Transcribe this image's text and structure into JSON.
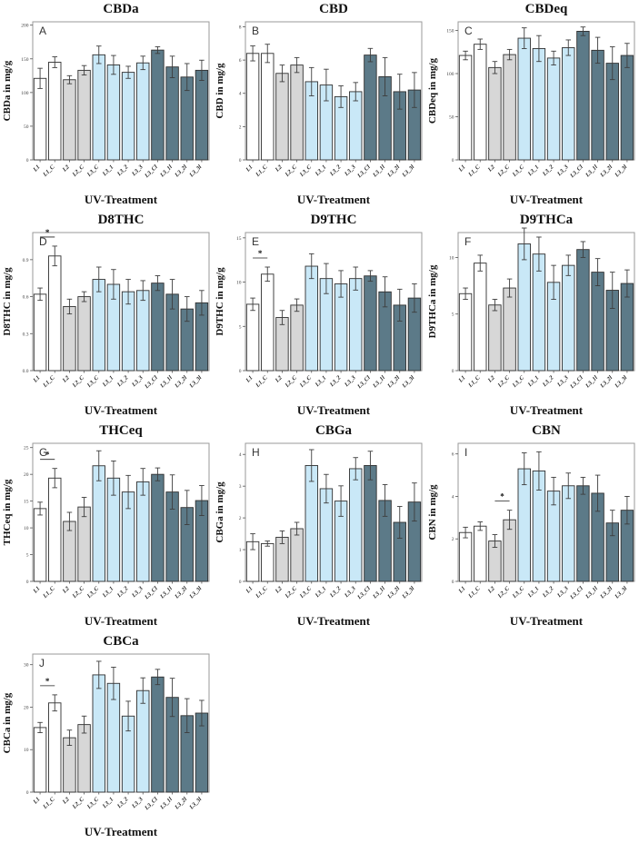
{
  "figure": {
    "x_axis_label": "UV-Treatment",
    "categories": [
      "L1",
      "L1_C",
      "L2",
      "L2_C",
      "L3_C",
      "L3_1",
      "L3_2",
      "L3_3",
      "L3_Cl",
      "L3_1l",
      "L3_2l",
      "L3_3l"
    ],
    "bar_groups": [
      "white",
      "white",
      "gray",
      "gray",
      "lightblue",
      "lightblue",
      "lightblue",
      "lightblue",
      "darkslate",
      "darkslate",
      "darkslate",
      "darkslate"
    ],
    "colors": {
      "white": "#ffffff",
      "gray": "#d7d7d7",
      "lightblue": "#c9e8f7",
      "darkslate": "#5c7a88",
      "bar_border": "#2f2f2f",
      "error_bar": "#3d3d3d",
      "panel_border": "#9a9a9a",
      "tick": "#555555"
    },
    "significance_symbol": "*",
    "legend": "none",
    "grid": "off"
  },
  "chart_data": [
    {
      "panel_letter": "A",
      "type": "bar",
      "title": "CBDa",
      "ylabel": "CBDa in mg/g",
      "xlabel": "UV-Treatment",
      "ylim": [
        0,
        205
      ],
      "yticks": [
        0,
        50,
        100,
        150,
        200
      ],
      "ytick_labels": [
        "0",
        "50",
        "100",
        "150",
        "200"
      ],
      "values": [
        121,
        145,
        119,
        133,
        156,
        141,
        130,
        144,
        163,
        138,
        123,
        133
      ],
      "errors": [
        15,
        8,
        6,
        7,
        13,
        14,
        9,
        10,
        5,
        16,
        20,
        15
      ],
      "significance": null
    },
    {
      "panel_letter": "B",
      "type": "bar",
      "title": "CBD",
      "ylabel": "CBD in mg/g",
      "xlabel": "UV-Treatment",
      "ylim": [
        0,
        8.3
      ],
      "yticks": [
        0,
        2,
        4,
        6,
        8
      ],
      "ytick_labels": [
        "0",
        "2",
        "4",
        "6",
        "8"
      ],
      "values": [
        6.4,
        6.4,
        5.2,
        5.7,
        4.7,
        4.5,
        3.8,
        4.1,
        6.3,
        5.0,
        4.1,
        4.2
      ],
      "errors": [
        0.45,
        0.55,
        0.5,
        0.45,
        0.85,
        0.95,
        0.65,
        0.55,
        0.4,
        1.15,
        1.05,
        1.05
      ],
      "significance": null
    },
    {
      "panel_letter": "C",
      "type": "bar",
      "title": "CBDeq",
      "ylabel": "CBDeq in mg/g",
      "xlabel": "UV-Treatment",
      "ylim": [
        0,
        160
      ],
      "yticks": [
        0,
        50,
        100,
        150
      ],
      "ytick_labels": [
        "0",
        "50",
        "100",
        "150"
      ],
      "values": [
        121,
        134,
        107,
        122,
        141,
        129,
        118,
        130,
        149,
        127,
        112,
        121
      ],
      "errors": [
        5,
        6,
        7,
        6,
        12,
        15,
        8,
        9,
        5,
        15,
        19,
        14
      ],
      "significance": null
    },
    {
      "panel_letter": "D",
      "type": "bar",
      "title": "D8THC",
      "ylabel": "D8THC in mg/g",
      "xlabel": "UV-Treatment",
      "ylim": [
        0,
        1.12
      ],
      "yticks": [
        0,
        0.3,
        0.6,
        0.9
      ],
      "ytick_labels": [
        "0.0",
        "0.3",
        "0.6",
        "0.9"
      ],
      "values": [
        0.62,
        0.93,
        0.52,
        0.6,
        0.74,
        0.7,
        0.64,
        0.65,
        0.71,
        0.62,
        0.5,
        0.55
      ],
      "errors": [
        0.05,
        0.08,
        0.06,
        0.04,
        0.1,
        0.12,
        0.1,
        0.08,
        0.06,
        0.12,
        0.1,
        0.1
      ],
      "significance": {
        "pair": [
          0,
          1
        ]
      }
    },
    {
      "panel_letter": "E",
      "type": "bar",
      "title": "D9THC",
      "ylabel": "D9THC in mg/g",
      "xlabel": "UV-Treatment",
      "ylim": [
        0,
        15.6
      ],
      "yticks": [
        0,
        5,
        10,
        15
      ],
      "ytick_labels": [
        "0",
        "5",
        "10",
        "15"
      ],
      "values": [
        7.5,
        10.9,
        6.0,
        7.4,
        11.8,
        10.4,
        9.8,
        10.4,
        10.7,
        8.9,
        7.4,
        8.2
      ],
      "errors": [
        0.7,
        0.8,
        0.8,
        0.7,
        1.4,
        1.7,
        1.5,
        1.3,
        0.6,
        1.7,
        1.8,
        1.6
      ],
      "significance": {
        "pair": [
          0,
          1
        ]
      }
    },
    {
      "panel_letter": "F",
      "type": "bar",
      "title": "D9THCa",
      "ylabel": "D9THCa in mg/g",
      "xlabel": "UV-Treatment",
      "ylim": [
        0,
        12.2
      ],
      "yticks": [
        0,
        5,
        10
      ],
      "ytick_labels": [
        "0",
        "5",
        "10"
      ],
      "values": [
        6.8,
        9.5,
        5.8,
        7.3,
        11.2,
        10.3,
        7.8,
        9.3,
        10.7,
        8.7,
        7.1,
        7.7
      ],
      "errors": [
        0.5,
        0.7,
        0.5,
        0.8,
        1.4,
        1.5,
        1.5,
        0.9,
        0.7,
        1.2,
        1.6,
        1.2
      ],
      "significance": null
    },
    {
      "panel_letter": "G",
      "type": "bar",
      "title": "THCeq",
      "ylabel": "THCeq in mg/g",
      "xlabel": "UV-Treatment",
      "ylim": [
        0,
        25.8
      ],
      "yticks": [
        0,
        5,
        10,
        15,
        20,
        25
      ],
      "ytick_labels": [
        "0",
        "5",
        "10",
        "15",
        "20",
        "25"
      ],
      "values": [
        13.6,
        19.3,
        11.2,
        13.9,
        21.6,
        19.3,
        16.7,
        18.6,
        20.0,
        16.7,
        13.8,
        15.1
      ],
      "errors": [
        1.2,
        1.8,
        1.7,
        1.8,
        2.8,
        3.2,
        3.1,
        2.5,
        1.2,
        3.2,
        3.2,
        2.8
      ],
      "significance": {
        "pair": [
          0,
          1
        ]
      }
    },
    {
      "panel_letter": "H",
      "type": "bar",
      "title": "CBGa",
      "ylabel": "CBGa in mg/g",
      "xlabel": "UV-Treatment",
      "ylim": [
        0,
        4.35
      ],
      "yticks": [
        0,
        1,
        2,
        3,
        4
      ],
      "ytick_labels": [
        "0",
        "1",
        "2",
        "3",
        "4"
      ],
      "values": [
        1.25,
        1.19,
        1.39,
        1.66,
        3.65,
        2.92,
        2.53,
        3.55,
        3.65,
        2.55,
        1.86,
        2.5
      ],
      "errors": [
        0.25,
        0.08,
        0.2,
        0.2,
        0.5,
        0.45,
        0.48,
        0.35,
        0.45,
        0.5,
        0.5,
        0.6
      ],
      "significance": null
    },
    {
      "panel_letter": "I",
      "type": "bar",
      "title": "CBN",
      "ylabel": "CBN in mg/g",
      "xlabel": "UV-Treatment",
      "ylim": [
        0,
        6.5
      ],
      "yticks": [
        0,
        2,
        4,
        6
      ],
      "ytick_labels": [
        "0",
        "2",
        "4",
        "6"
      ],
      "values": [
        2.3,
        2.6,
        1.9,
        2.9,
        5.3,
        5.2,
        4.25,
        4.5,
        4.5,
        4.15,
        2.75,
        3.35
      ],
      "errors": [
        0.25,
        0.2,
        0.3,
        0.45,
        0.75,
        0.9,
        0.65,
        0.6,
        0.4,
        0.85,
        0.6,
        0.65
      ],
      "significance": {
        "pair": [
          2,
          3
        ]
      }
    },
    {
      "panel_letter": "J",
      "type": "bar",
      "title": "CBCa",
      "ylabel": "CBCa in mg/g",
      "xlabel": "UV-Treatment",
      "ylim": [
        0,
        32.5
      ],
      "yticks": [
        0,
        10,
        20,
        30
      ],
      "ytick_labels": [
        "0",
        "10",
        "20",
        "30"
      ],
      "values": [
        15.2,
        21.0,
        12.8,
        15.9,
        27.6,
        25.6,
        17.9,
        23.9,
        27.1,
        22.3,
        18.0,
        18.6
      ],
      "errors": [
        1.2,
        1.9,
        1.8,
        2.0,
        3.2,
        3.8,
        3.5,
        3.0,
        1.8,
        4.5,
        4.0,
        3.0
      ],
      "significance": {
        "pair": [
          0,
          1
        ]
      }
    }
  ]
}
